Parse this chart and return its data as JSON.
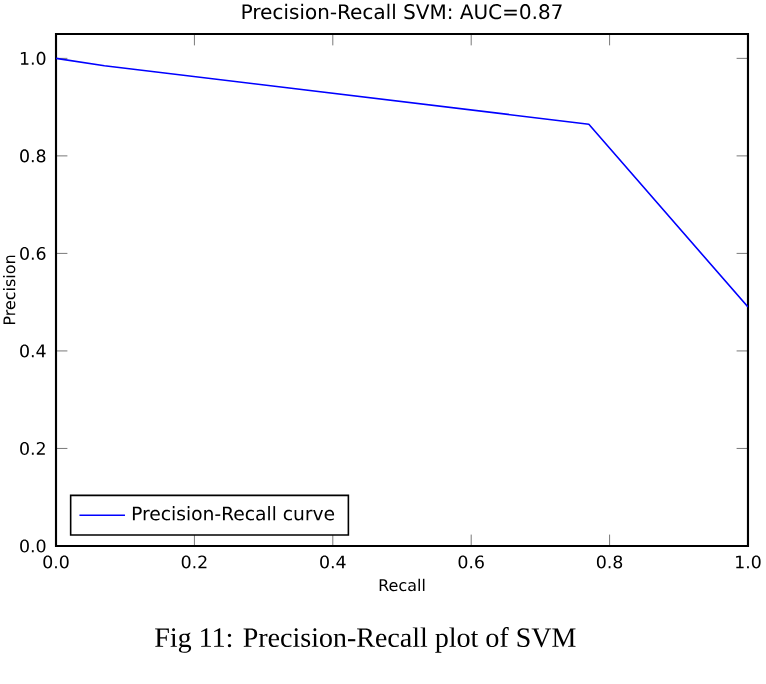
{
  "chart_data": {
    "type": "line",
    "title": "Precision-Recall SVM: AUC=0.87",
    "xlabel": "Recall",
    "ylabel": "Precision",
    "x": [
      0,
      0.07,
      0.77,
      1.0
    ],
    "series": [
      {
        "name": "Precision-Recall curve",
        "color": "#0000ff",
        "values": [
          1.0,
          0.985,
          0.865,
          0.49
        ]
      }
    ],
    "xlim": [
      0,
      1
    ],
    "ylim": [
      0,
      1.05
    ],
    "xticks": [
      {
        "value": 0,
        "label": "0.0"
      },
      0.2,
      0.4,
      0.6,
      0.8,
      {
        "value": 1,
        "label": "1.0"
      }
    ],
    "yticks": [
      {
        "value": 0,
        "label": "0.0"
      },
      0.2,
      0.4,
      0.6,
      0.8,
      {
        "value": 1,
        "label": "1.0"
      }
    ],
    "legend": "bottom left",
    "grid": false,
    "marker": "none",
    "line_style": "solid",
    "annotations": [
      "Fig 11: Precision-Recall plot of SVM"
    ]
  }
}
